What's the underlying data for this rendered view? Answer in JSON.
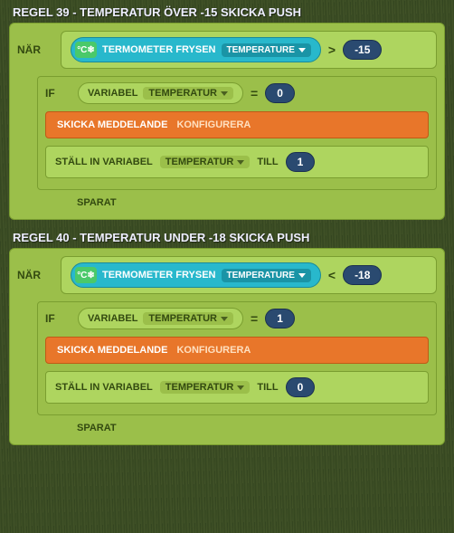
{
  "rules": [
    {
      "title": "REGEL 39 - TEMPERATUR ÖVER -15 SKICKA PUSH",
      "when_label": "NÄR",
      "sensor_icon": "°C❄",
      "sensor_name": "TERMOMETER FRYSEN",
      "sensor_property": "TEMPERATURE",
      "comparison_op": ">",
      "comparison_value": "-15",
      "if_label": "IF",
      "variable_label": "VARIABEL",
      "variable_name": "TEMPERATUR",
      "if_op": "=",
      "if_value": "0",
      "send_msg_label": "SKICKA MEDDELANDE",
      "configure_label": "KONFIGURERA",
      "set_var_label": "STÄLL IN VARIABEL",
      "set_var_name": "TEMPERATUR",
      "to_label": "TILL",
      "set_value": "1",
      "saved_label": "SPARAT"
    },
    {
      "title": "REGEL 40 - TEMPERATUR UNDER -18 SKICKA PUSH",
      "when_label": "NÄR",
      "sensor_icon": "°C❄",
      "sensor_name": "TERMOMETER FRYSEN",
      "sensor_property": "TEMPERATURE",
      "comparison_op": "<",
      "comparison_value": "-18",
      "if_label": "IF",
      "variable_label": "VARIABEL",
      "variable_name": "TEMPERATUR",
      "if_op": "=",
      "if_value": "1",
      "send_msg_label": "SKICKA MEDDELANDE",
      "configure_label": "KONFIGURERA",
      "set_var_label": "STÄLL IN VARIABEL",
      "set_var_name": "TEMPERATUR",
      "to_label": "TILL",
      "set_value": "0",
      "saved_label": "SPARAT"
    }
  ],
  "colors": {
    "block_bg": "#9bbf4a",
    "block_inner": "#aed55f",
    "block_border": "#7a9e30",
    "sensor_pill": "#28b8cc",
    "sensor_icon_bg": "#4ac96a",
    "sensor_prop_bg": "#1a94a6",
    "value_pill": "#2a4a70",
    "action_orange": "#e8762a",
    "text_dark": "#334a10"
  }
}
